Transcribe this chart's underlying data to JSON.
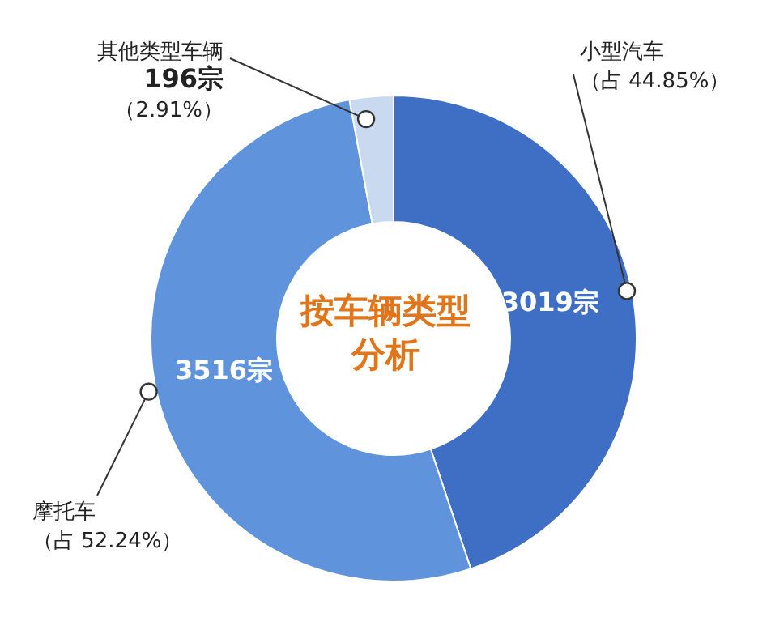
{
  "chart_data": {
    "type": "donut",
    "title": "按车辆类型分析",
    "categories": [
      "小型汽车",
      "摩托车",
      "其他类型车辆"
    ],
    "values": [
      3019,
      3516,
      196
    ],
    "colors": [
      "#3f6fc4",
      "#5f93dc",
      "#c9d9f0"
    ],
    "value_labels": [
      "3019宗",
      "3516宗",
      "196宗"
    ],
    "annotations": [
      "（占 44.85%）",
      "（占 52.24%）",
      "（2.91%）"
    ],
    "legend": false
  }
}
